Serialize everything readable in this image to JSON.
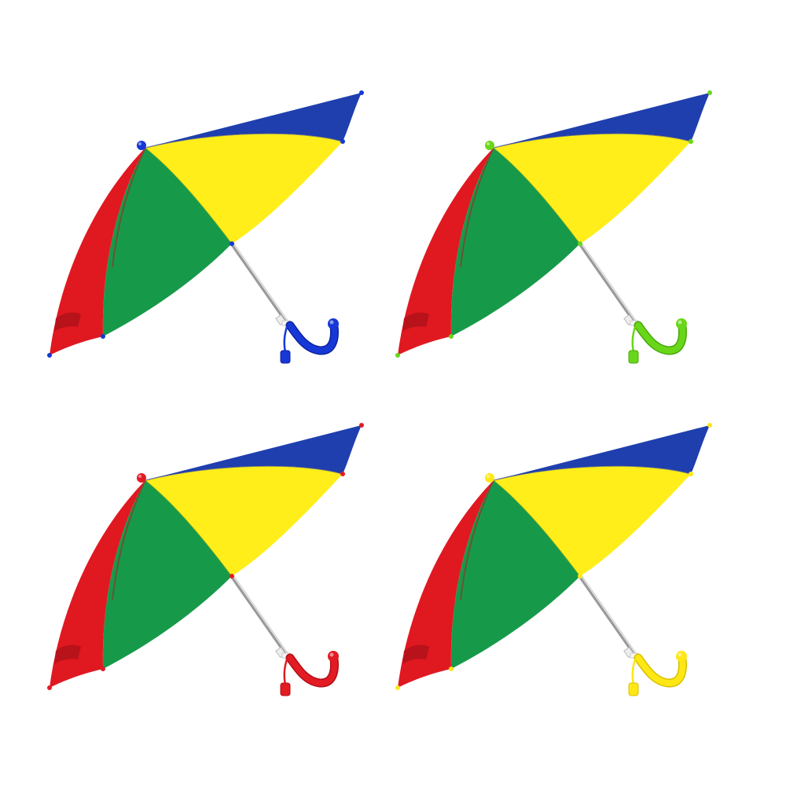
{
  "canopy_colors": {
    "blue": "#1f3fae",
    "yellow": "#ffee1a",
    "green": "#169a4a",
    "red": "#e01820",
    "red_dark": "#b8121a",
    "green_dark": "#0f7f3a"
  },
  "umbrellas": [
    {
      "id": "top-left",
      "handle_color": "#1638d6",
      "handle_dark": "#0d22a0"
    },
    {
      "id": "top-right",
      "handle_color": "#6ad61a",
      "handle_dark": "#48a80c"
    },
    {
      "id": "bottom-left",
      "handle_color": "#e31b23",
      "handle_dark": "#b00f16"
    },
    {
      "id": "bottom-right",
      "handle_color": "#ffe714",
      "handle_dark": "#d8c000"
    }
  ]
}
